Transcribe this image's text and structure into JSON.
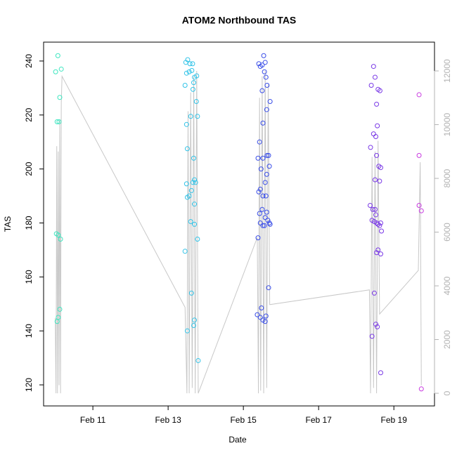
{
  "chart_data": {
    "type": "scatter",
    "title": "ATOM2 Northbound TAS",
    "x_label": "Date",
    "y_label": "TAS",
    "xlim": [
      9.69,
      20.08
    ],
    "ylim": [
      112.2,
      247.0
    ],
    "y2lim": [
      -470,
      13072
    ],
    "xticks": [
      {
        "value": 11,
        "label": "Feb 11"
      },
      {
        "value": 13,
        "label": "Feb 13"
      },
      {
        "value": 15,
        "label": "Feb 15"
      },
      {
        "value": 17,
        "label": "Feb 17"
      },
      {
        "value": 19,
        "label": "Feb 19"
      }
    ],
    "yticks": [
      120,
      140,
      160,
      180,
      200,
      220,
      240
    ],
    "y2ticks": [
      0,
      2000,
      4000,
      6000,
      8000,
      10000,
      12000
    ],
    "y2_color": "#b3b3b3",
    "series": [
      {
        "type": "line",
        "axis": "y2",
        "color": "#c8c8c8",
        "x": [
          10.0,
          10.02,
          10.04,
          10.06,
          10.08,
          10.1,
          10.12,
          10.14,
          10.16,
          10.18,
          13.45,
          13.5,
          13.53,
          13.56,
          13.6,
          13.64,
          13.68,
          13.72,
          13.76,
          13.8,
          15.37,
          15.4,
          15.43,
          15.46,
          15.5,
          15.54,
          15.58,
          15.62,
          15.66,
          15.7,
          18.35,
          18.38,
          18.42,
          18.46,
          18.5,
          18.54,
          18.58,
          18.62,
          19.65,
          19.7,
          19.73
        ],
        "values": [
          2800,
          0,
          9200,
          0,
          9000,
          300,
          10200,
          0,
          10800,
          11800,
          3200,
          0,
          10500,
          0,
          11200,
          200,
          11800,
          0,
          12000,
          0,
          5800,
          0,
          11000,
          100,
          11800,
          0,
          12000,
          200,
          11500,
          3300,
          3850,
          0,
          8800,
          200,
          9000,
          0,
          9400,
          2950,
          4575,
          8600,
          300
        ]
      },
      {
        "color": "#3ee6c0",
        "x": [
          10.07,
          10.01,
          10.16,
          10.12,
          10.05,
          10.1,
          10.03,
          10.08,
          10.14,
          10.12,
          10.08,
          10.05
        ],
        "values": [
          242,
          236,
          237,
          226.5,
          217.5,
          217.5,
          176,
          175.5,
          174,
          148,
          145,
          143.5
        ]
      },
      {
        "color": "#33c4e8",
        "x": [
          13.52,
          13.47,
          13.58,
          13.65,
          13.49,
          13.56,
          13.63,
          13.7,
          13.76,
          13.68,
          13.45,
          13.66,
          13.75,
          13.6,
          13.78,
          13.49,
          13.51,
          13.68,
          13.7,
          13.73,
          13.49,
          13.66,
          13.62,
          13.56,
          13.51,
          13.7,
          13.6,
          13.7,
          13.45,
          13.78,
          13.62,
          13.7,
          13.68,
          13.51,
          13.8
        ],
        "values": [
          240.5,
          239.5,
          239,
          239,
          235.5,
          236,
          236.5,
          234,
          234.5,
          232,
          231,
          229.5,
          225,
          219.5,
          219.5,
          216.5,
          207.5,
          204,
          196,
          195,
          194.5,
          195,
          192,
          190,
          189.5,
          187,
          180.5,
          179.5,
          169.5,
          174,
          154,
          144,
          142,
          140,
          129
        ]
      },
      {
        "color": "#3a4ee8",
        "x": [
          15.54,
          15.41,
          15.5,
          15.58,
          15.45,
          15.56,
          15.6,
          15.63,
          15.5,
          15.62,
          15.52,
          15.71,
          15.43,
          15.39,
          15.52,
          15.63,
          15.67,
          15.47,
          15.62,
          15.69,
          15.58,
          15.45,
          15.41,
          15.52,
          15.6,
          15.5,
          15.43,
          15.62,
          15.58,
          15.65,
          15.69,
          15.45,
          15.52,
          15.56,
          15.71,
          15.39,
          15.67,
          15.48,
          15.37,
          15.45,
          15.6,
          15.52,
          15.58
        ],
        "values": [
          242,
          239,
          238.5,
          239.5,
          238,
          236,
          234,
          231,
          229,
          222,
          217,
          225,
          210,
          204,
          204,
          205,
          205,
          200,
          198,
          201,
          195,
          192.5,
          191.5,
          190,
          190,
          185,
          183.5,
          184,
          182,
          181,
          180,
          180,
          179,
          179,
          179.5,
          174.5,
          156,
          148.5,
          146,
          145,
          145.5,
          144,
          143.5
        ]
      },
      {
        "color": "#7a3ae6",
        "x": [
          18.46,
          18.4,
          18.5,
          18.58,
          18.63,
          18.54,
          18.46,
          18.52,
          18.56,
          18.38,
          18.54,
          18.6,
          18.65,
          18.5,
          18.62,
          18.37,
          18.44,
          18.5,
          18.42,
          18.48,
          18.54,
          18.58,
          18.62,
          18.65,
          18.67,
          18.52,
          18.58,
          18.65,
          18.54,
          18.48,
          18.52,
          18.56,
          18.42,
          18.65
        ],
        "values": [
          238,
          231,
          234,
          229.5,
          229,
          224,
          213,
          212,
          216,
          208,
          205,
          201,
          200.5,
          196,
          195.5,
          186.5,
          185,
          185,
          181,
          180.5,
          180,
          179.5,
          179,
          180,
          177,
          183,
          170,
          168.5,
          169,
          154,
          142.5,
          141.5,
          138,
          124.5
        ]
      },
      {
        "color": "#c83ae0",
        "x": [
          19.67,
          19.67,
          19.67,
          19.73,
          19.73
        ],
        "values": [
          227.5,
          205,
          186.5,
          184.5,
          118.5
        ]
      }
    ]
  }
}
